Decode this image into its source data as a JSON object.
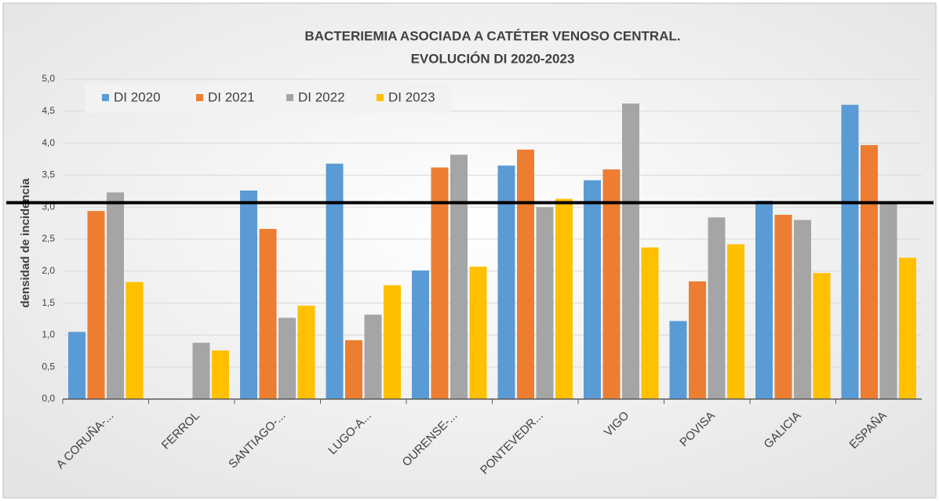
{
  "chart_data": {
    "type": "bar",
    "title": "BACTERIEMIA ASOCIADA A CATÉTER VENOSO CENTRAL.",
    "subtitle": "EVOLUCIÓN DI 2020-2023",
    "y_label": "densidad de incidencia",
    "categories": [
      "A CORUÑA-...",
      "FERROL",
      "SANTIAGO-...",
      "LUGO-A...",
      "OURENSE-...",
      "PONTEVEDR...",
      "VIGO",
      "POVISA",
      "GALICIA",
      "ESPAÑA"
    ],
    "series": [
      {
        "name": "DI 2020",
        "color": "#5b9bd5",
        "values": [
          1.05,
          null,
          3.26,
          3.68,
          2.01,
          3.65,
          3.42,
          1.22,
          3.1,
          4.6
        ]
      },
      {
        "name": "DI 2021",
        "color": "#ed7d31",
        "values": [
          2.94,
          null,
          2.66,
          0.92,
          3.62,
          3.9,
          3.59,
          1.84,
          2.88,
          3.97
        ]
      },
      {
        "name": "DI 2022",
        "color": "#a5a5a5",
        "values": [
          3.23,
          0.88,
          1.27,
          1.32,
          3.82,
          3.0,
          4.62,
          2.84,
          2.8,
          3.05
        ]
      },
      {
        "name": "DI 2023",
        "color": "#ffc000",
        "values": [
          1.83,
          0.76,
          1.46,
          1.78,
          2.07,
          3.13,
          2.37,
          2.42,
          1.97,
          2.21
        ]
      }
    ],
    "reference_line": 3.07,
    "ylim": [
      0,
      5
    ],
    "yticks": [
      {
        "value": 0,
        "label": "0,0"
      },
      {
        "value": 0.5,
        "label": "0,5"
      },
      {
        "value": 1,
        "label": "1,0"
      },
      {
        "value": 1.5,
        "label": "1,5"
      },
      {
        "value": 2,
        "label": "2,0"
      },
      {
        "value": 2.5,
        "label": "2,5"
      },
      {
        "value": 3,
        "label": "3,0"
      },
      {
        "value": 3.5,
        "label": "3,5"
      },
      {
        "value": 4,
        "label": "4,0"
      },
      {
        "value": 4.5,
        "label": "4,5"
      },
      {
        "value": 5,
        "label": "5,0"
      }
    ],
    "grid": true,
    "legend": "top-left"
  }
}
